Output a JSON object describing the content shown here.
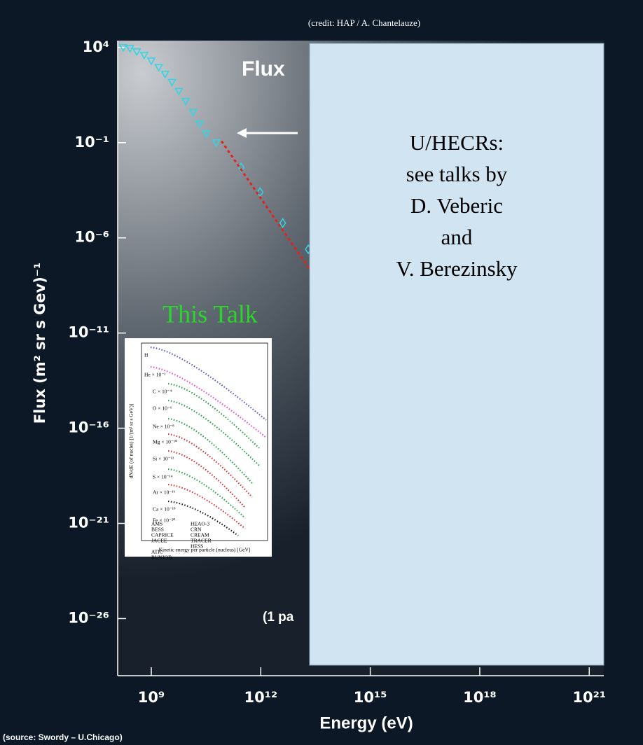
{
  "chart_data": {
    "type": "scatter",
    "title": "Flux",
    "x_label": "Energy (eV)",
    "y_label": "Flux (m² sr s Gev)⁻¹",
    "annotations": [
      "(1 pa"
    ],
    "xscale": "log",
    "yscale": "log",
    "xlim": [
      120000000,
      2.5e+21
    ],
    "ylim": [
      1e-29,
      23000
    ],
    "xticks": [
      {
        "value": 1000000000.0,
        "label": "10⁹"
      },
      {
        "value": 1000000000000.0,
        "label": "10¹²"
      },
      {
        "value": 1000000000000000.0,
        "label": "10¹⁵"
      },
      {
        "value": 1e+18,
        "label": "10¹⁸"
      },
      {
        "value": 1e+21,
        "label": "10²¹"
      }
    ],
    "yticks": [
      {
        "value": 10000,
        "label": "10⁴"
      },
      {
        "value": 0.1,
        "label": "10⁻¹"
      },
      {
        "value": 1e-06,
        "label": "10⁻⁶"
      },
      {
        "value": 1e-11,
        "label": "10⁻¹¹"
      },
      {
        "value": 1e-16,
        "label": "10⁻¹⁶"
      },
      {
        "value": 1e-21,
        "label": "10⁻²¹"
      },
      {
        "value": 1e-26,
        "label": "10⁻²⁶"
      }
    ],
    "series": [
      {
        "marker": "triangle",
        "color": "#2ed6e6",
        "x": [
          170000000,
          260000000,
          400000000,
          640000000,
          1000000000,
          1600000000,
          2400000000,
          3700000000,
          5700000000,
          8800000000,
          14000000000,
          21000000000,
          32000000000,
          60000000000
        ],
        "values": [
          10000,
          9000,
          6000,
          4000,
          2000,
          900,
          400,
          150,
          50,
          15,
          4,
          1,
          0.3,
          0.1
        ]
      },
      {
        "marker": "diamond",
        "color": "#2ed6e6",
        "x": [
          290000000000,
          960000000000,
          4000000000000,
          20000000000000
        ],
        "values": [
          0.005,
          0.00025,
          6e-06,
          2.5e-07
        ]
      },
      {
        "marker": "dotted-line",
        "color": "#e0241b",
        "x": [
          84000000000,
          21000000000000
        ],
        "values": [
          0.12,
          2.5e-08
        ]
      }
    ]
  },
  "slide": {
    "credit": "(credit: HAP / A. Chantelauze)",
    "source": "(source: Swordy – U.Chicago)",
    "this_talk": "This Talk",
    "overlay_lines": [
      "U/HECRs:",
      "see talks by",
      "D. Veberic",
      "and",
      "V. Berezinsky"
    ],
    "inset": {
      "x_label": "Kinetic energy per particle (nucleus)  [GeV]",
      "y_label": "dN/dE (of nuclei)  [1/(m² sr s GeV)]",
      "elements": [
        "H",
        "He × 10⁻²",
        "C × 10⁻⁴",
        "O × 10⁻⁶",
        "Ne × 10⁻⁸",
        "Mg × 10⁻¹⁰",
        "Si × 10⁻¹²",
        "S × 10⁻¹⁴",
        "Ar × 10⁻¹⁶",
        "Ca × 10⁻¹⁸",
        "Fe × 10⁻²⁰"
      ],
      "legend": [
        "AMS",
        "BESS",
        "CAPRICE",
        "JACEE",
        "ATIC",
        "RUNJOB",
        "HEAO-3",
        "CRN",
        "CREAM",
        "TRACER",
        "HESS"
      ]
    }
  }
}
